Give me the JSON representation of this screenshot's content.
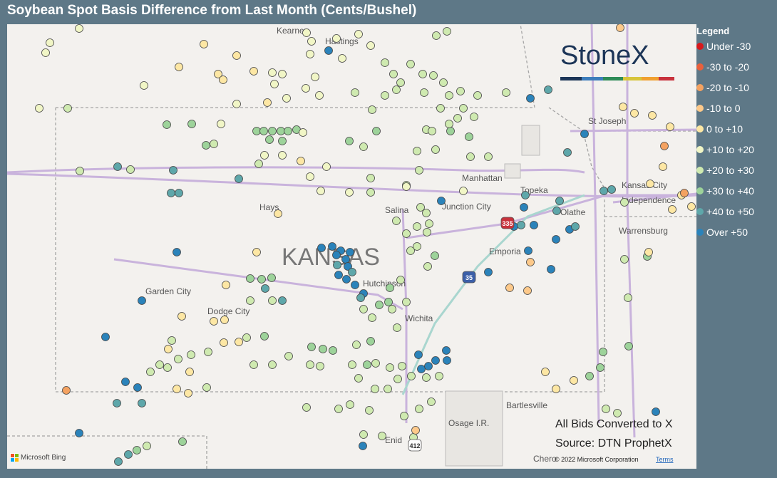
{
  "title": "Soybean Spot Basis Difference from Last Month (Cents/Bushel)",
  "legend": {
    "title": "Legend",
    "items": [
      {
        "label": "Under -30",
        "color": "#d7191c"
      },
      {
        "label": "-30 to -20",
        "color": "#e8603c"
      },
      {
        "label": "-20 to -10",
        "color": "#f4a261"
      },
      {
        "label": "-10 to 0",
        "color": "#fdc98a"
      },
      {
        "label": "0 to +10",
        "color": "#fde7a4"
      },
      {
        "label": "+10 to +20",
        "color": "#f1f6c6"
      },
      {
        "label": "+20 to +30",
        "color": "#cfeab0"
      },
      {
        "label": "+30 to +40",
        "color": "#9dd39a"
      },
      {
        "label": "+40 to +50",
        "color": "#5ea7aa"
      },
      {
        "label": "Over +50",
        "color": "#2b83ba"
      }
    ]
  },
  "map": {
    "state_label": "KANSAS",
    "places": [
      "Kearney",
      "Hastings",
      "St Joseph",
      "Manhattan",
      "Hays",
      "Salina",
      "Junction City",
      "Topeka",
      "Kansas City",
      "Independence",
      "Olathe",
      "Warrensburg",
      "Emporia",
      "Hutchinson",
      "Garden City",
      "Dodge City",
      "Wichita",
      "Bartlesville",
      "Osage I.R.",
      "Enid",
      "Chero"
    ],
    "shields": [
      "335",
      "35",
      "412"
    ],
    "logo": "StoneX",
    "attribution": "Microsoft Bing",
    "copyright": "© 2022 Microsoft Corporation",
    "terms": "Terms"
  },
  "notes": [
    "All Bids Converted to X",
    "Source: DTN ProphetX"
  ]
}
